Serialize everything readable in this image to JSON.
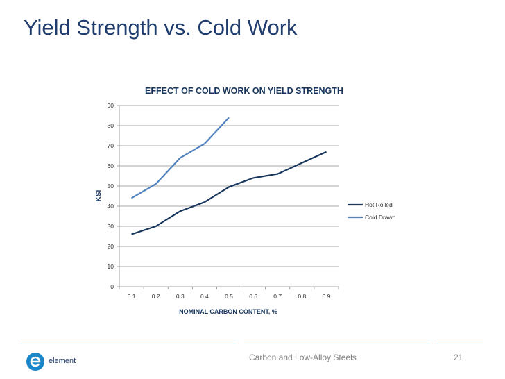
{
  "slide": {
    "title": "Yield Strength vs. Cold Work",
    "footer_text": "Carbon and Low-Alloy Steels",
    "page_number": "21",
    "logo_text": "element",
    "colors": {
      "title": "#1f3c6e",
      "footer_line": "#8fc0dd",
      "logo_blue": "#1a86c8"
    }
  },
  "chart_data": {
    "type": "line",
    "title": "EFFECT OF COLD WORK ON YIELD STRENGTH",
    "xlabel": "NOMINAL CARBON CONTENT, %",
    "ylabel": "KSI",
    "categories": [
      "0.1",
      "0.2",
      "0.3",
      "0.4",
      "0.5",
      "0.6",
      "0.7",
      "0.8",
      "0.9"
    ],
    "ylim": [
      0,
      90
    ],
    "yticks": [
      "0",
      "10",
      "20",
      "30",
      "40",
      "50",
      "60",
      "70",
      "80",
      "90"
    ],
    "grid": true,
    "legend_position": "right",
    "series": [
      {
        "name": "Hot Rolled",
        "color": "#17365d",
        "values": [
          26,
          30,
          37.5,
          42,
          49.5,
          54,
          56,
          61.5,
          67
        ]
      },
      {
        "name": "Cold Drawn",
        "color": "#4f81bd",
        "values": [
          44,
          51,
          64,
          71,
          84,
          null,
          null,
          null,
          null
        ]
      }
    ]
  }
}
